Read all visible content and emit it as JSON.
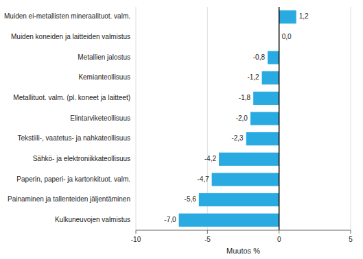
{
  "chart_data": {
    "type": "bar",
    "orientation": "horizontal",
    "categories": [
      "Kulkuneuvojen valmistus",
      "Painaminen ja tallenteiden jäljentäminen",
      "Paperin, paperi- ja kartonkituot. valm.",
      "Sähkö- ja elektroniikkateollisuus",
      "Tekstiili-, vaatetus- ja nahkateollisuus",
      "Elintarviketeollisuus",
      "Metallituot. valm. (pl. koneet ja laitteet)",
      "Kemianteollisuus",
      "Metallien jalostus",
      "Muiden koneiden ja laitteiden valmistus",
      "Muiden ei-metallisten mineraalituot. valm."
    ],
    "values": [
      -7.0,
      -5.6,
      -4.7,
      -4.2,
      -2.3,
      -2.0,
      -1.8,
      -1.2,
      -0.8,
      0.0,
      1.2
    ],
    "value_labels": [
      "-7,0",
      "-5,6",
      "-4,7",
      "-4,2",
      "-2,3",
      "-2,0",
      "-1,8",
      "-1,2",
      "-0,8",
      "0,0",
      "1,2"
    ],
    "color": "#29ABE2",
    "xlabel": "Muutos %",
    "xlim": [
      -10,
      5
    ],
    "xticks": [
      -10,
      -5,
      0,
      5
    ],
    "grid": true
  }
}
